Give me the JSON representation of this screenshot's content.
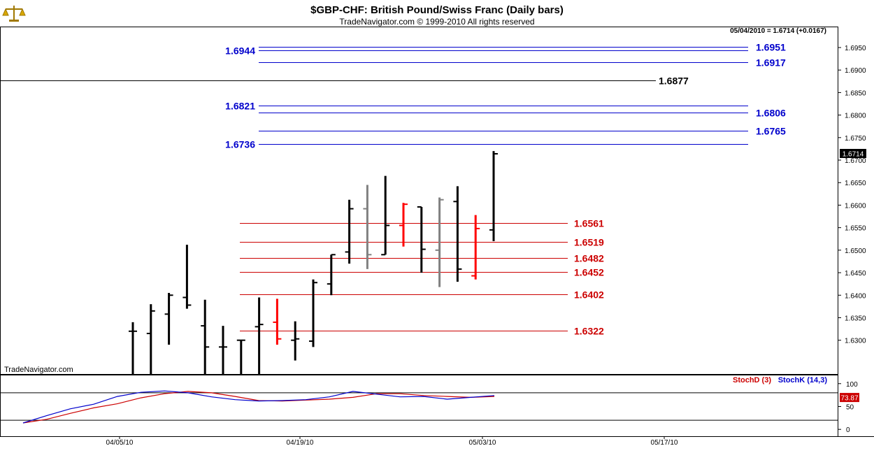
{
  "header": {
    "title": "$GBP-CHF:  British Pound/Swiss Franc  (Daily bars)",
    "copyright": "TradeNavigator.com © 1999-2010 All rights reserved",
    "quote": "05/04/2010 = 1.6714 (+0.0167)",
    "logo_icon": "scales-icon"
  },
  "watermark": "TradeNavigator.com",
  "colors": {
    "up": "#000000",
    "down": "#ff0000",
    "gray": "#808080",
    "blue_level": "#0000cc",
    "red_level": "#cc0000",
    "stoch_d": "#cc0000",
    "stoch_k": "#0000cc"
  },
  "chart_data": [
    {
      "type": "ohlc",
      "title": "$GBP-CHF:  British Pound/Swiss Franc  (Daily bars)",
      "ylim": [
        1.6225,
        1.6995
      ],
      "y_ticks": [
        "1.6950",
        "1.6900",
        "1.6850",
        "1.6800",
        "1.6750",
        "1.6700",
        "1.6650",
        "1.6600",
        "1.6550",
        "1.6500",
        "1.6450",
        "1.6400",
        "1.6350",
        "1.6300"
      ],
      "x_ticks": [
        "04/05/10",
        "04/19/10",
        "05/03/10",
        "05/17/10"
      ],
      "last_price_label": "1.6714",
      "last_price": 1.6714,
      "bars": [
        {
          "date": "04/05/10",
          "open": 1.632,
          "high": 1.634,
          "low": 1.6225,
          "close": 1.632,
          "color": "up"
        },
        {
          "date": "04/06/10",
          "open": 1.6315,
          "high": 1.638,
          "low": 1.6225,
          "close": 1.6365,
          "color": "up"
        },
        {
          "date": "04/07/10",
          "open": 1.6358,
          "high": 1.6405,
          "low": 1.629,
          "close": 1.64,
          "color": "up"
        },
        {
          "date": "04/08/10",
          "open": 1.6395,
          "high": 1.6512,
          "low": 1.637,
          "close": 1.6378,
          "color": "up"
        },
        {
          "date": "04/09/10",
          "open": 1.6332,
          "high": 1.639,
          "low": 1.6225,
          "close": 1.6285,
          "color": "up"
        },
        {
          "date": "04/12/10",
          "open": 1.6285,
          "high": 1.6332,
          "low": 1.6225,
          "close": 1.6285,
          "color": "up"
        },
        {
          "date": "04/13/10",
          "open": 1.63,
          "high": 1.63,
          "low": 1.6225,
          "close": 1.63,
          "color": "up"
        },
        {
          "date": "04/14/10",
          "open": 1.633,
          "high": 1.6395,
          "low": 1.6225,
          "close": 1.6335,
          "color": "up"
        },
        {
          "date": "04/15/10",
          "open": 1.634,
          "high": 1.6392,
          "low": 1.629,
          "close": 1.6303,
          "color": "down"
        },
        {
          "date": "04/16/10",
          "open": 1.63,
          "high": 1.6342,
          "low": 1.6255,
          "close": 1.6303,
          "color": "up"
        },
        {
          "date": "04/19/10",
          "open": 1.6298,
          "high": 1.6435,
          "low": 1.6285,
          "close": 1.6428,
          "color": "up"
        },
        {
          "date": "04/20/10",
          "open": 1.6425,
          "high": 1.649,
          "low": 1.64,
          "close": 1.649,
          "color": "up"
        },
        {
          "date": "04/21/10",
          "open": 1.6496,
          "high": 1.6612,
          "low": 1.647,
          "close": 1.6592,
          "color": "up"
        },
        {
          "date": "04/22/10",
          "open": 1.6592,
          "high": 1.6645,
          "low": 1.6458,
          "close": 1.649,
          "color": "gray"
        },
        {
          "date": "04/23/10",
          "open": 1.649,
          "high": 1.6665,
          "low": 1.649,
          "close": 1.6555,
          "color": "up"
        },
        {
          "date": "04/26/10",
          "open": 1.6555,
          "high": 1.6605,
          "low": 1.6508,
          "close": 1.6602,
          "color": "down"
        },
        {
          "date": "04/27/10",
          "open": 1.6596,
          "high": 1.6596,
          "low": 1.645,
          "close": 1.6502,
          "color": "up"
        },
        {
          "date": "04/28/10",
          "open": 1.65,
          "high": 1.6617,
          "low": 1.6418,
          "close": 1.6612,
          "color": "gray"
        },
        {
          "date": "04/29/10",
          "open": 1.6608,
          "high": 1.6642,
          "low": 1.643,
          "close": 1.6458,
          "color": "up"
        },
        {
          "date": "04/30/10",
          "open": 1.6443,
          "high": 1.6578,
          "low": 1.6435,
          "close": 1.6548,
          "color": "down"
        },
        {
          "date": "05/03/10",
          "open": 1.6545,
          "high": 1.672,
          "low": 1.652,
          "close": 1.6714,
          "color": "up"
        }
      ],
      "levels": [
        {
          "label": "1.6944",
          "value": 1.6944,
          "color": "blue",
          "side": "left"
        },
        {
          "label": "1.6951",
          "value": 1.6951,
          "color": "blue",
          "side": "right"
        },
        {
          "label": "1.6917",
          "value": 1.6917,
          "color": "blue",
          "side": "right"
        },
        {
          "label": "1.6877",
          "value": 1.6877,
          "color": "black",
          "side": "right"
        },
        {
          "label": "1.6821",
          "value": 1.6821,
          "color": "blue",
          "side": "left"
        },
        {
          "label": "1.6806",
          "value": 1.6806,
          "color": "blue",
          "side": "right"
        },
        {
          "label": "1.6765",
          "value": 1.6765,
          "color": "blue",
          "side": "right"
        },
        {
          "label": "1.6736",
          "value": 1.6736,
          "color": "blue",
          "side": "left"
        },
        {
          "label": "1.6561",
          "value": 1.6561,
          "color": "red",
          "side": "right"
        },
        {
          "label": "1.6519",
          "value": 1.6519,
          "color": "red",
          "side": "right"
        },
        {
          "label": "1.6482",
          "value": 1.6482,
          "color": "red",
          "side": "right"
        },
        {
          "label": "1.6452",
          "value": 1.6452,
          "color": "red",
          "side": "right"
        },
        {
          "label": "1.6402",
          "value": 1.6402,
          "color": "red",
          "side": "right"
        },
        {
          "label": "1.6322",
          "value": 1.6322,
          "color": "red",
          "side": "right"
        }
      ]
    },
    {
      "type": "line",
      "title": "",
      "ylim": [
        -15,
        118
      ],
      "y_ticks": [
        "100",
        "50",
        "0"
      ],
      "reference_lines": [
        80,
        20
      ],
      "last_label": "73.87",
      "series": [
        {
          "name": "StochD (3)",
          "color": "stoch_d",
          "x": [
            0,
            1,
            2,
            3,
            4,
            5,
            6,
            7,
            8,
            9,
            10,
            11,
            12,
            13,
            14,
            15,
            16,
            17,
            18,
            19,
            20
          ],
          "values": [
            14,
            22,
            35,
            47,
            56,
            69,
            78,
            83,
            80,
            72,
            63,
            62,
            64,
            66,
            70,
            78,
            78,
            74,
            72,
            70,
            72
          ]
        },
        {
          "name": "StochK (14,3)",
          "color": "stoch_k",
          "x": [
            0,
            1,
            2,
            3,
            4,
            5,
            6,
            7,
            8,
            9,
            10,
            11,
            12,
            13,
            14,
            15,
            16,
            17,
            18,
            19,
            20
          ],
          "values": [
            14,
            30,
            45,
            55,
            72,
            81,
            84,
            80,
            71,
            65,
            62,
            63,
            65,
            71,
            83,
            77,
            71,
            72,
            66,
            70,
            74
          ]
        }
      ]
    }
  ]
}
